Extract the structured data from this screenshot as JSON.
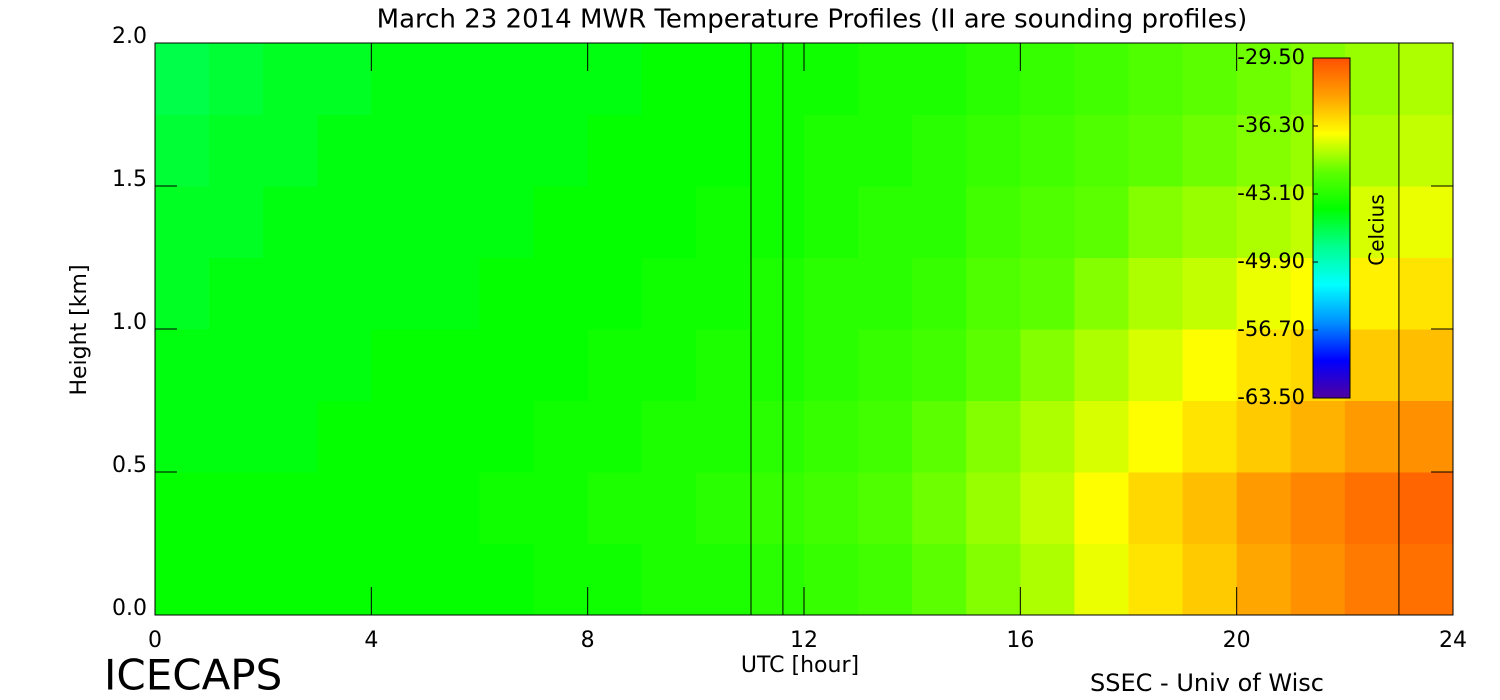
{
  "chart_data": {
    "type": "heatmap",
    "title": "March 23 2014 MWR Temperature Profiles (II are sounding profiles)",
    "xlabel": "UTC [hour]",
    "ylabel": "Height [km]",
    "footer_left": "ICECAPS",
    "footer_right": "SSEC - Univ of Wisc",
    "colorbar_label": "Celcius",
    "xlim": [
      0,
      24
    ],
    "xticks": [
      0,
      4,
      8,
      12,
      16,
      20,
      24
    ],
    "ylim": [
      0,
      2
    ],
    "yticks": [
      {
        "value": 0,
        "label": "0.0"
      },
      0.5,
      {
        "value": 1,
        "label": "1.0"
      },
      1.5,
      {
        "value": 2,
        "label": "2.0"
      }
    ],
    "zlim": [
      -63.5,
      -29.5
    ],
    "zticks": [
      {
        "value": -29.5,
        "label": "-29.50"
      },
      {
        "value": -36.3,
        "label": "-36.30"
      },
      {
        "value": -43.1,
        "label": "-43.10"
      },
      {
        "value": -49.9,
        "label": "-49.90"
      },
      {
        "value": -56.7,
        "label": "-56.70"
      },
      {
        "value": -63.5,
        "label": "-63.50"
      }
    ],
    "colormap": [
      "#5000a0",
      "#0000ff",
      "#0090ff",
      "#00ffff",
      "#00ff90",
      "#00ff00",
      "#60ff00",
      "#ffff00",
      "#ffa000",
      "#ff5000"
    ],
    "x": [
      0.5,
      1.5,
      2.5,
      3.5,
      4.5,
      5.5,
      6.5,
      7.5,
      8.5,
      9.5,
      10.5,
      11.5,
      12.5,
      13.5,
      14.5,
      15.5,
      16.5,
      17.5,
      18.5,
      19.5,
      20.5,
      21.5,
      22.5,
      23.5
    ],
    "y": [
      0.125,
      0.375,
      0.625,
      0.875,
      1.125,
      1.375,
      1.625,
      1.875
    ],
    "z": [
      [
        -44.5,
        -44.5,
        -44.5,
        -44.5,
        -44.5,
        -44.5,
        -44.5,
        -44,
        -44,
        -43.5,
        -43.5,
        -43,
        -42.5,
        -42,
        -41,
        -40,
        -39,
        -37.5,
        -36,
        -35,
        -33.5,
        -32.5,
        -31.5,
        -31
      ],
      [
        -44.5,
        -44.5,
        -44.5,
        -44.5,
        -44.5,
        -44.5,
        -44,
        -44,
        -43.5,
        -43.5,
        -43,
        -42.5,
        -42,
        -41.5,
        -40.5,
        -39.5,
        -38.5,
        -37,
        -35.5,
        -34.5,
        -33,
        -32,
        -31,
        -30.5
      ],
      [
        -45,
        -45,
        -45,
        -44.5,
        -44.5,
        -44.5,
        -44.5,
        -44,
        -44,
        -43.5,
        -43.5,
        -43,
        -42.5,
        -42,
        -41,
        -40,
        -39,
        -38,
        -37,
        -36,
        -35,
        -34,
        -33,
        -32.5
      ],
      [
        -45,
        -45,
        -45,
        -45,
        -44.5,
        -44.5,
        -44.5,
        -44.5,
        -44,
        -44,
        -43.5,
        -43.5,
        -43,
        -42.5,
        -42,
        -41,
        -40,
        -39,
        -38,
        -37,
        -36,
        -35.5,
        -35,
        -34.5
      ],
      [
        -45.5,
        -45,
        -45,
        -45,
        -45,
        -45,
        -44.5,
        -44.5,
        -44.5,
        -44,
        -44,
        -43.5,
        -43,
        -43,
        -42.5,
        -41.5,
        -41,
        -40,
        -39,
        -38.5,
        -37.5,
        -37,
        -36.5,
        -36
      ],
      [
        -45.5,
        -45.5,
        -45,
        -45,
        -45,
        -45,
        -45,
        -44.5,
        -44.5,
        -44.5,
        -44,
        -44,
        -43.5,
        -43,
        -43,
        -42,
        -41.5,
        -41,
        -40,
        -39.5,
        -39,
        -38.5,
        -38,
        -37.5
      ],
      [
        -46,
        -45.5,
        -45.5,
        -45,
        -45,
        -45,
        -45,
        -45,
        -44.5,
        -44.5,
        -44.5,
        -44,
        -43.5,
        -43.5,
        -43,
        -42.5,
        -42,
        -41.5,
        -41,
        -40.5,
        -40,
        -39.5,
        -39,
        -38.5
      ],
      [
        -46.5,
        -46,
        -45.5,
        -45.5,
        -45,
        -45,
        -45,
        -45,
        -45,
        -44.5,
        -44.5,
        -44,
        -44,
        -43.5,
        -43.5,
        -43,
        -42.5,
        -42,
        -41.5,
        -41,
        -40.5,
        -40,
        -39.5,
        -39
      ]
    ],
    "sounding_times": [
      11.02,
      11.61,
      23.0
    ]
  }
}
